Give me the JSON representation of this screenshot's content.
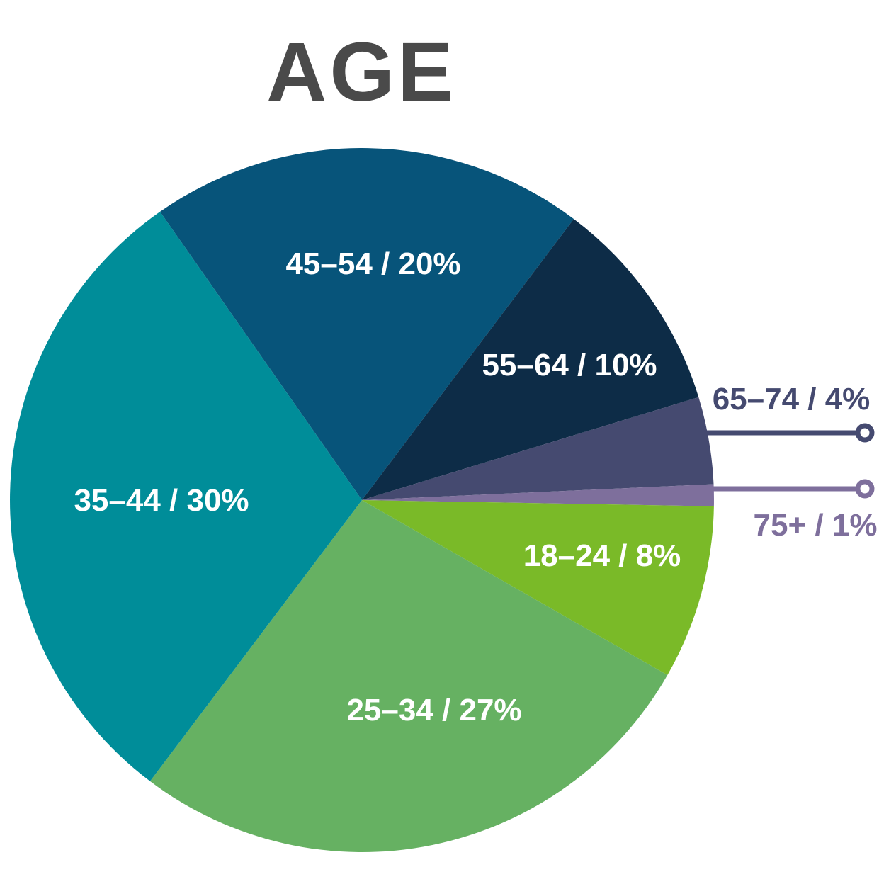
{
  "title": "AGE",
  "chart_data": {
    "type": "pie",
    "title": "AGE",
    "unit": "%",
    "start_angle_deg": 125,
    "direction": "clockwise",
    "legend_position": "none",
    "background_color": "#ffffff",
    "title_color": "#4a4a4a",
    "slices": [
      {
        "id": "45-54",
        "label": "45–54",
        "value": 20,
        "display": "45–54 / 20%",
        "color": "#07547a",
        "text_color": "#ffffff",
        "label_placement": "inside"
      },
      {
        "id": "55-64",
        "label": "55–64",
        "value": 10,
        "display": "55–64 / 10%",
        "color": "#0d2c47",
        "text_color": "#ffffff",
        "label_placement": "inside"
      },
      {
        "id": "65-74",
        "label": "65–74",
        "value": 4,
        "display": "65–74 / 4%",
        "color": "#454a70",
        "text_color": "#454a70",
        "label_placement": "outside-callout"
      },
      {
        "id": "75plus",
        "label": "75+",
        "value": 1,
        "display": "75+ / 1%",
        "color": "#7e6f9c",
        "text_color": "#7e6f9c",
        "label_placement": "outside-callout"
      },
      {
        "id": "18-24",
        "label": "18–24",
        "value": 8,
        "display": "18–24 / 8%",
        "color": "#7aba28",
        "text_color": "#ffffff",
        "label_placement": "inside"
      },
      {
        "id": "25-34",
        "label": "25–34",
        "value": 27,
        "display": "25–34 / 27%",
        "color": "#66b162",
        "text_color": "#ffffff",
        "label_placement": "inside"
      },
      {
        "id": "35-44",
        "label": "35–44",
        "value": 30,
        "display": "35–44 / 30%",
        "color": "#008d99",
        "text_color": "#ffffff",
        "label_placement": "inside"
      }
    ],
    "callouts": [
      {
        "slice_index": 2,
        "color": "#454a70"
      },
      {
        "slice_index": 3,
        "color": "#7e6f9c"
      }
    ]
  }
}
